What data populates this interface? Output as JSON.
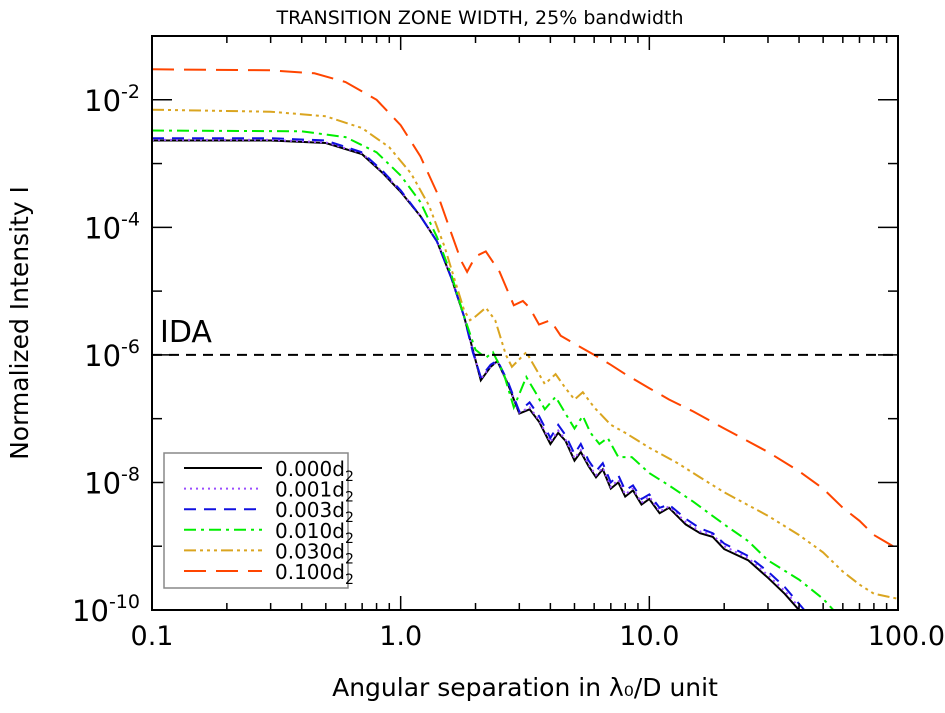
{
  "chart_data": {
    "type": "line",
    "title": "TRANSITION ZONE WIDTH, 25% bandwidth",
    "xlabel": "Angular separation in λ₀/D unit",
    "ylabel": "Normalized Intensity I",
    "xscale": "log",
    "yscale": "log",
    "xlim": [
      0.1,
      100
    ],
    "ylim": [
      1e-10,
      0.1
    ],
    "grid": false,
    "legend_position": "bottom-left",
    "x_tick_labels": [
      "0.1",
      "1.0",
      "10.0",
      "100.0"
    ],
    "x_ticks": [
      0.1,
      1,
      10,
      100
    ],
    "y_ticks": [
      {
        "value": 0.01,
        "base": "10",
        "exp": "-2"
      },
      {
        "value": 0.0001,
        "base": "10",
        "exp": "-4"
      },
      {
        "value": 1e-06,
        "base": "10",
        "exp": "-6"
      },
      {
        "value": 1e-08,
        "base": "10",
        "exp": "-8"
      },
      {
        "value": 1e-10,
        "base": "10",
        "exp": "-10"
      }
    ],
    "reference_line": {
      "label": "IDA",
      "y": 1e-06,
      "color": "#000000"
    },
    "series": [
      {
        "name": "0.000d",
        "sub": "2",
        "color": "#000000",
        "style": "solid",
        "points": [
          [
            0.1,
            0.0023
          ],
          [
            0.3,
            0.0023
          ],
          [
            0.5,
            0.0021
          ],
          [
            0.7,
            0.0014
          ],
          [
            0.85,
            0.0007
          ],
          [
            1.0,
            0.00036
          ],
          [
            1.2,
            0.00015
          ],
          [
            1.4,
            6e-05
          ],
          [
            1.6,
            1.6e-05
          ],
          [
            1.8,
            4e-06
          ],
          [
            1.95,
            1.2e-06
          ],
          [
            2.1,
            4e-07
          ],
          [
            2.3,
            6.5e-07
          ],
          [
            2.45,
            8e-07
          ],
          [
            2.7,
            3.5e-07
          ],
          [
            3.0,
            1.2e-07
          ],
          [
            3.3,
            1.4e-07
          ],
          [
            3.6,
            9e-08
          ],
          [
            4.0,
            4e-08
          ],
          [
            4.3,
            6e-08
          ],
          [
            4.6,
            4.5e-08
          ],
          [
            5.0,
            2.2e-08
          ],
          [
            5.3,
            3e-08
          ],
          [
            5.7,
            1.8e-08
          ],
          [
            6.1,
            1.2e-08
          ],
          [
            6.5,
            1.6e-08
          ],
          [
            7.0,
            8e-09
          ],
          [
            7.5,
            1e-08
          ],
          [
            8.0,
            6e-09
          ],
          [
            8.6,
            7.5e-09
          ],
          [
            9.3,
            4.5e-09
          ],
          [
            10,
            5.5e-09
          ],
          [
            11,
            3.3e-09
          ],
          [
            12,
            4e-09
          ],
          [
            14,
            2.2e-09
          ],
          [
            16,
            1.6e-09
          ],
          [
            18,
            1.4e-09
          ],
          [
            20,
            9e-10
          ],
          [
            25,
            6e-10
          ],
          [
            30,
            3.2e-10
          ],
          [
            35,
            1.8e-10
          ],
          [
            40,
            1e-10
          ]
        ]
      },
      {
        "name": "0.001d",
        "sub": "2",
        "color": "#9b4dff",
        "style": "dotted",
        "points": [
          [
            0.1,
            0.00235
          ],
          [
            0.3,
            0.00235
          ],
          [
            0.5,
            0.00215
          ],
          [
            0.7,
            0.00145
          ],
          [
            0.85,
            0.00072
          ],
          [
            1.0,
            0.00037
          ],
          [
            1.2,
            0.00015
          ],
          [
            1.4,
            6e-05
          ],
          [
            1.6,
            1.6e-05
          ],
          [
            1.8,
            4e-06
          ],
          [
            1.95,
            1.2e-06
          ],
          [
            2.1,
            4.2e-07
          ],
          [
            2.3,
            6.6e-07
          ],
          [
            2.45,
            8e-07
          ],
          [
            2.7,
            3.6e-07
          ],
          [
            3.0,
            1.25e-07
          ],
          [
            3.3,
            1.5e-07
          ],
          [
            3.6,
            9.5e-08
          ],
          [
            4.0,
            4.3e-08
          ],
          [
            4.3,
            6.5e-08
          ],
          [
            4.6,
            4.7e-08
          ],
          [
            5.0,
            2.4e-08
          ],
          [
            5.3,
            3.2e-08
          ],
          [
            5.7,
            1.9e-08
          ],
          [
            6.1,
            1.3e-08
          ],
          [
            6.5,
            1.7e-08
          ],
          [
            7.0,
            8.5e-09
          ],
          [
            7.5,
            1.1e-08
          ],
          [
            8.0,
            6.5e-09
          ],
          [
            8.6,
            8e-09
          ],
          [
            9.3,
            4.8e-09
          ],
          [
            10,
            6e-09
          ],
          [
            11,
            3.5e-09
          ],
          [
            12,
            4.2e-09
          ],
          [
            14,
            2.4e-09
          ],
          [
            16,
            1.7e-09
          ],
          [
            18,
            1.5e-09
          ],
          [
            20,
            1e-09
          ],
          [
            25,
            6.5e-10
          ],
          [
            30,
            3.5e-10
          ],
          [
            35,
            2e-10
          ],
          [
            41,
            1e-10
          ]
        ]
      },
      {
        "name": "0.003d",
        "sub": "2",
        "color": "#1010e0",
        "style": "dashed",
        "points": [
          [
            0.1,
            0.0025
          ],
          [
            0.3,
            0.0025
          ],
          [
            0.5,
            0.0023
          ],
          [
            0.7,
            0.0015
          ],
          [
            0.85,
            0.00075
          ],
          [
            1.0,
            0.00038
          ],
          [
            1.2,
            0.00015
          ],
          [
            1.4,
            6e-05
          ],
          [
            1.6,
            1.6e-05
          ],
          [
            1.8,
            4e-06
          ],
          [
            1.95,
            1.1e-06
          ],
          [
            2.1,
            4.5e-07
          ],
          [
            2.3,
            7e-07
          ],
          [
            2.45,
            8.2e-07
          ],
          [
            2.7,
            3.8e-07
          ],
          [
            3.0,
            1.3e-07
          ],
          [
            3.3,
            1.8e-07
          ],
          [
            3.6,
            1.1e-07
          ],
          [
            4.0,
            5e-08
          ],
          [
            4.3,
            8e-08
          ],
          [
            4.6,
            5.5e-08
          ],
          [
            5.0,
            2.8e-08
          ],
          [
            5.3,
            4e-08
          ],
          [
            5.7,
            2.2e-08
          ],
          [
            6.1,
            1.5e-08
          ],
          [
            6.5,
            2e-08
          ],
          [
            7.0,
            1e-08
          ],
          [
            7.5,
            1.3e-08
          ],
          [
            8.0,
            7.5e-09
          ],
          [
            8.6,
            9e-09
          ],
          [
            9.3,
            5.5e-09
          ],
          [
            10,
            6.5e-09
          ],
          [
            11,
            4e-09
          ],
          [
            12,
            4.5e-09
          ],
          [
            14,
            2.7e-09
          ],
          [
            16,
            1.9e-09
          ],
          [
            18,
            1.6e-09
          ],
          [
            20,
            1.1e-09
          ],
          [
            25,
            7e-10
          ],
          [
            30,
            4e-10
          ],
          [
            35,
            2.3e-10
          ],
          [
            42,
            1e-10
          ]
        ]
      },
      {
        "name": "0.010d",
        "sub": "2",
        "color": "#00ee00",
        "style": "dashdot",
        "points": [
          [
            0.1,
            0.0033
          ],
          [
            0.4,
            0.0032
          ],
          [
            0.6,
            0.0026
          ],
          [
            0.8,
            0.0015
          ],
          [
            1.0,
            0.00065
          ],
          [
            1.2,
            0.00025
          ],
          [
            1.4,
            7e-05
          ],
          [
            1.6,
            1.8e-05
          ],
          [
            1.8,
            4e-06
          ],
          [
            2.0,
            1.2e-06
          ],
          [
            2.2,
            9e-07
          ],
          [
            2.35,
            1.1e-06
          ],
          [
            2.6,
            5e-07
          ],
          [
            2.85,
            1.5e-07
          ],
          [
            3.2,
            4.5e-07
          ],
          [
            3.5,
            2.5e-07
          ],
          [
            3.8,
            1.4e-07
          ],
          [
            4.2,
            2.2e-07
          ],
          [
            4.6,
            1.2e-07
          ],
          [
            5.0,
            7e-08
          ],
          [
            5.4,
            1.1e-07
          ],
          [
            5.8,
            6e-08
          ],
          [
            6.3,
            4e-08
          ],
          [
            6.8,
            5e-08
          ],
          [
            7.5,
            2.5e-08
          ],
          [
            8.5,
            2.5e-08
          ],
          [
            10,
            1.4e-08
          ],
          [
            12,
            9e-09
          ],
          [
            15,
            5e-09
          ],
          [
            20,
            2.2e-09
          ],
          [
            25,
            1.2e-09
          ],
          [
            30,
            6e-10
          ],
          [
            40,
            3e-10
          ],
          [
            50,
            1.5e-10
          ],
          [
            55,
            1e-10
          ]
        ]
      },
      {
        "name": "0.030d",
        "sub": "2",
        "color": "#daa520",
        "style": "dashdotdotdot",
        "points": [
          [
            0.1,
            0.007
          ],
          [
            0.3,
            0.0065
          ],
          [
            0.5,
            0.0055
          ],
          [
            0.7,
            0.0036
          ],
          [
            0.9,
            0.0018
          ],
          [
            1.1,
            0.0007
          ],
          [
            1.3,
            0.00022
          ],
          [
            1.5,
            5e-05
          ],
          [
            1.65,
            1.5e-05
          ],
          [
            1.8,
            5e-06
          ],
          [
            1.9,
            3.5e-06
          ],
          [
            2.0,
            4e-06
          ],
          [
            2.2,
            5.5e-06
          ],
          [
            2.4,
            3.5e-06
          ],
          [
            2.65,
            1e-06
          ],
          [
            2.8,
            6.5e-07
          ],
          [
            3.2,
            1.1e-06
          ],
          [
            3.5,
            6e-07
          ],
          [
            3.8,
            3.5e-07
          ],
          [
            4.2,
            5e-07
          ],
          [
            4.6,
            3e-07
          ],
          [
            5.0,
            2e-07
          ],
          [
            5.4,
            2.6e-07
          ],
          [
            6,
            1.5e-07
          ],
          [
            7,
            8e-08
          ],
          [
            8,
            6e-08
          ],
          [
            10,
            3.5e-08
          ],
          [
            13,
            2e-08
          ],
          [
            16,
            1.2e-08
          ],
          [
            20,
            7e-09
          ],
          [
            30,
            3e-09
          ],
          [
            40,
            1.5e-09
          ],
          [
            50,
            8e-10
          ],
          [
            60,
            4e-10
          ],
          [
            70,
            2.5e-10
          ],
          [
            80,
            1.8e-10
          ],
          [
            100,
            1.5e-10
          ]
        ]
      },
      {
        "name": "0.100d",
        "sub": "2",
        "color": "#ff4500",
        "style": "longdash",
        "points": [
          [
            0.1,
            0.03
          ],
          [
            0.3,
            0.029
          ],
          [
            0.45,
            0.026
          ],
          [
            0.6,
            0.019
          ],
          [
            0.8,
            0.01
          ],
          [
            1.0,
            0.004
          ],
          [
            1.2,
            0.0013
          ],
          [
            1.4,
            0.00035
          ],
          [
            1.6,
            8e-05
          ],
          [
            1.75,
            3e-05
          ],
          [
            1.85,
            2e-05
          ],
          [
            2.0,
            3.5e-05
          ],
          [
            2.2,
            4.2e-05
          ],
          [
            2.5,
            2e-05
          ],
          [
            2.85,
            6e-06
          ],
          [
            3.1,
            7e-06
          ],
          [
            3.3,
            5.5e-06
          ],
          [
            3.6,
            3e-06
          ],
          [
            4.0,
            3.5e-06
          ],
          [
            4.4,
            2e-06
          ],
          [
            5,
            1.5e-06
          ],
          [
            6,
            1e-06
          ],
          [
            7,
            7e-07
          ],
          [
            8,
            5e-07
          ],
          [
            10,
            3e-07
          ],
          [
            12,
            2e-07
          ],
          [
            15,
            1.3e-07
          ],
          [
            20,
            7e-08
          ],
          [
            30,
            3e-08
          ],
          [
            40,
            1.5e-08
          ],
          [
            50,
            8e-09
          ],
          [
            60,
            4e-09
          ],
          [
            70,
            2.5e-09
          ],
          [
            80,
            1.5e-09
          ],
          [
            100,
            9e-10
          ]
        ]
      }
    ]
  }
}
